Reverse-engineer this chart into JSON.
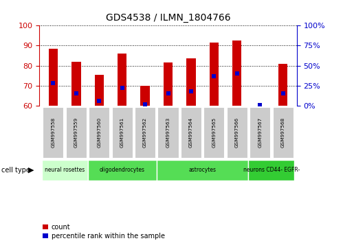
{
  "title": "GDS4538 / ILMN_1804766",
  "samples": [
    "GSM997558",
    "GSM997559",
    "GSM997560",
    "GSM997561",
    "GSM997562",
    "GSM997563",
    "GSM997564",
    "GSM997565",
    "GSM997566",
    "GSM997567",
    "GSM997568"
  ],
  "count_values": [
    88.5,
    82,
    75.5,
    86,
    70,
    81.5,
    83.5,
    91.5,
    92.5,
    60,
    81
  ],
  "percentile_values": [
    28,
    15,
    6,
    22,
    2,
    15,
    18,
    37,
    40,
    1,
    15
  ],
  "ylim_left": [
    60,
    100
  ],
  "ylim_right": [
    0,
    100
  ],
  "yticks_left": [
    60,
    70,
    80,
    90,
    100
  ],
  "yticks_right": [
    0,
    25,
    50,
    75,
    100
  ],
  "cell_types": [
    {
      "label": "neural rosettes",
      "start": 0,
      "end": 2,
      "color": "#ccffcc"
    },
    {
      "label": "oligodendrocytes",
      "start": 2,
      "end": 5,
      "color": "#55dd55"
    },
    {
      "label": "astrocytes",
      "start": 5,
      "end": 9,
      "color": "#55dd55"
    },
    {
      "label": "neurons CD44- EGFR-",
      "start": 9,
      "end": 11,
      "color": "#33cc33"
    }
  ],
  "bar_color": "#cc0000",
  "dot_color": "#0000cc",
  "bar_width": 0.4,
  "dot_size": 18,
  "left_color": "#cc0000",
  "right_color": "#0000cc",
  "sample_box_color": "#cccccc",
  "title_fontsize": 10
}
